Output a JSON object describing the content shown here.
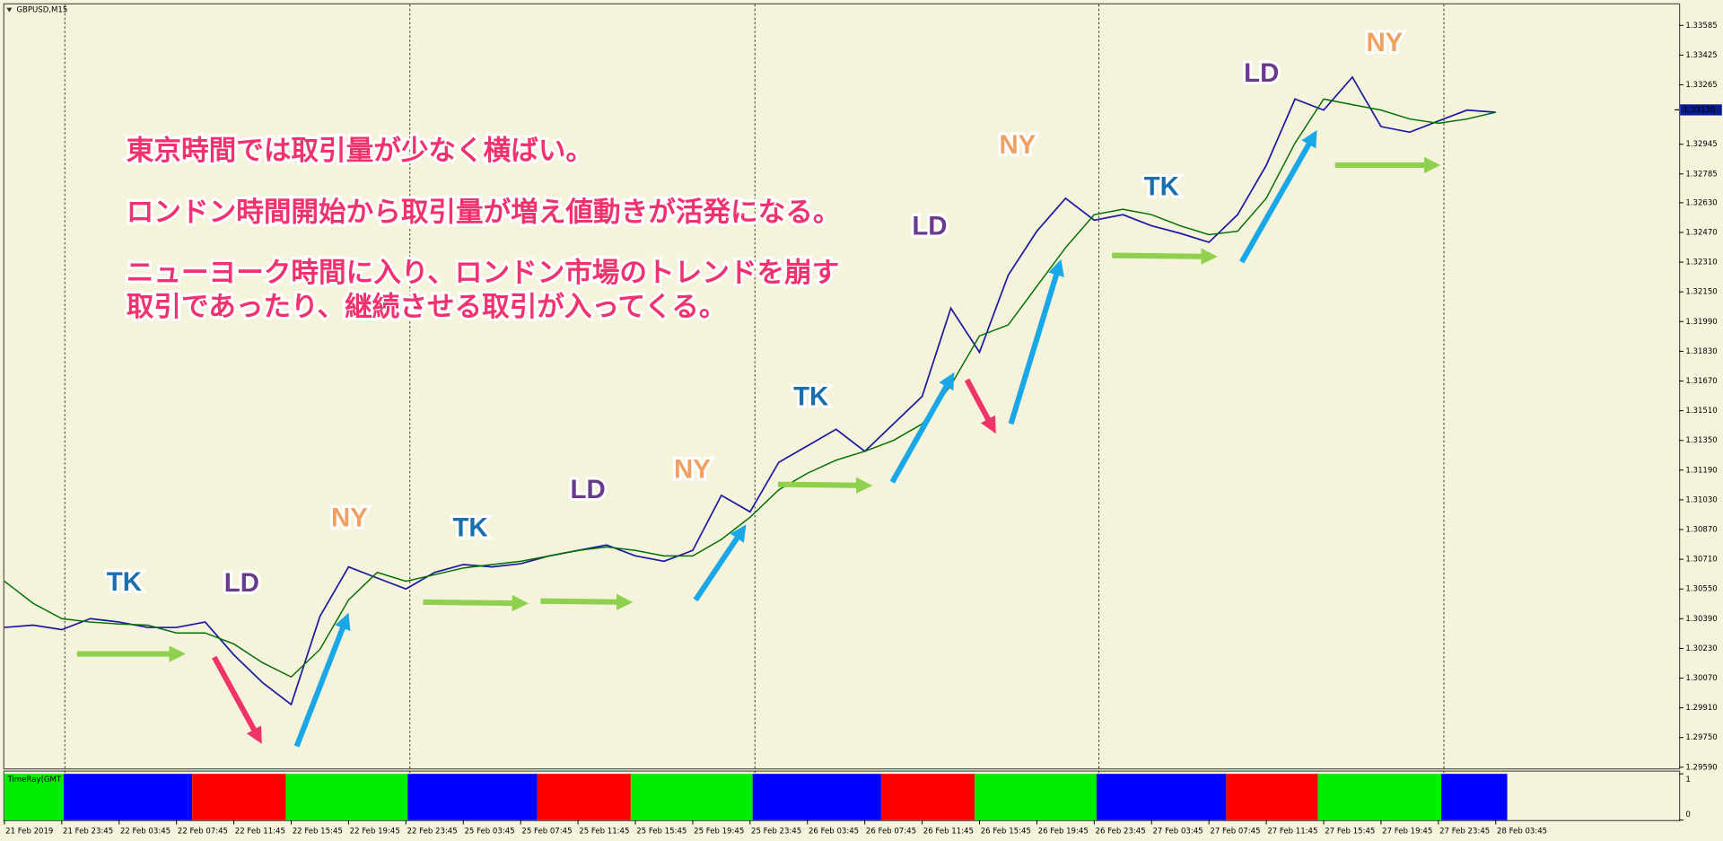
{
  "chart_data": [
    {
      "type": "line",
      "title": "GBPUSD,M15",
      "categories": [
        "21 Feb 2019",
        null,
        "21 Feb 23:45",
        null,
        "22 Feb 03:45",
        null,
        "22 Feb 07:45",
        null,
        "22 Feb 11:45",
        null,
        "22 Feb 15:45",
        null,
        "22 Feb 19:45",
        null,
        "22 Feb 23:45",
        null,
        "25 Feb 03:45",
        null,
        "25 Feb 07:45",
        null,
        "25 Feb 11:45",
        null,
        "25 Feb 15:45",
        null,
        "25 Feb 19:45",
        null,
        "25 Feb 23:45",
        null,
        "26 Feb 03:45",
        null,
        "26 Feb 07:45",
        null,
        "26 Feb 11:45",
        null,
        "26 Feb 15:45",
        null,
        "26 Feb 19:45",
        null,
        "26 Feb 23:45",
        null,
        "27 Feb 03:45",
        null,
        "27 Feb 07:45",
        null,
        "27 Feb 11:45",
        null,
        "27 Feb 15:45",
        null,
        "27 Feb 19:45",
        null,
        "27 Feb 23:45",
        null,
        "28 Feb 03:45"
      ],
      "series": [
        {
          "color": "#1a1aa0",
          "values": [
            1.30343,
            1.30355,
            1.30331,
            1.3039,
            1.30372,
            1.30343,
            1.30343,
            1.30372,
            1.30195,
            1.30046,
            1.29928,
            1.30402,
            1.30669,
            1.30609,
            1.3055,
            1.30639,
            1.30681,
            1.30669,
            1.30686,
            1.30728,
            1.30758,
            1.30787,
            1.30728,
            1.30699,
            1.30758,
            1.31054,
            1.30965,
            1.31232,
            1.31321,
            1.3141,
            1.31291,
            1.31439,
            1.31587,
            1.32062,
            1.31825,
            1.3224,
            1.32477,
            1.32654,
            1.32536,
            1.32566,
            1.32506,
            1.32465,
            1.32417,
            1.32566,
            1.32832,
            1.33188,
            1.33129,
            1.33306,
            1.3304,
            1.3301,
            1.3307,
            1.33129,
            1.33117
          ]
        },
        {
          "color": "#007000",
          "values": [
            1.30592,
            1.30473,
            1.3039,
            1.30372,
            1.30361,
            1.30355,
            1.30313,
            1.30313,
            1.30254,
            1.30153,
            1.30076,
            1.30224,
            1.30491,
            1.30639,
            1.30592,
            1.30627,
            1.30663,
            1.30681,
            1.30699,
            1.30728,
            1.30758,
            1.30776,
            1.30758,
            1.30728,
            1.30728,
            1.30817,
            1.30936,
            1.31084,
            1.31173,
            1.31244,
            1.31291,
            1.3135,
            1.31439,
            1.31647,
            1.31913,
            1.31972,
            1.3218,
            1.32388,
            1.32566,
            1.32595,
            1.32566,
            1.32506,
            1.32458,
            1.32477,
            1.32654,
            1.32951,
            1.33188,
            1.33158,
            1.33129,
            1.33081,
            1.33058,
            1.33081,
            1.33117
          ]
        }
      ],
      "ylim": [
        1.29584,
        1.33698
      ],
      "yticks": [
        1.33585,
        1.33425,
        1.33265,
        1.32945,
        1.32785,
        {
          "value": 1.3263,
          "label": "1.32630"
        },
        {
          "value": 1.3247,
          "label": "1.32470"
        },
        {
          "value": 1.3231,
          "label": "1.32310"
        },
        {
          "value": 1.3215,
          "label": "1.32150"
        },
        {
          "value": 1.3199,
          "label": "1.31990"
        },
        {
          "value": 1.3183,
          "label": "1.31830"
        },
        {
          "value": 1.3167,
          "label": "1.31670"
        },
        {
          "value": 1.3151,
          "label": "1.31510"
        },
        {
          "value": 1.3135,
          "label": "1.31350"
        },
        {
          "value": 1.3119,
          "label": "1.31190"
        },
        {
          "value": 1.3103,
          "label": "1.31030"
        },
        {
          "value": 1.3087,
          "label": "1.30870"
        },
        {
          "value": 1.3071,
          "label": "1.30710"
        },
        {
          "value": 1.3055,
          "label": "1.30550"
        },
        {
          "value": 1.3039,
          "label": "1.30390"
        },
        {
          "value": 1.3023,
          "label": "1.30230"
        },
        {
          "value": 1.3007,
          "label": "1.30070"
        },
        {
          "value": 1.2991,
          "label": "1.29910"
        },
        {
          "value": 1.2975,
          "label": "1.29750"
        },
        {
          "value": 1.2959,
          "label": "1.29590"
        }
      ],
      "current_price": {
        "value": 1.3313,
        "label": "1.33130"
      },
      "annotations": [
        "東京時間では取引量が少なく横ばい。",
        "ロンドン時間開始から取引量が増え値動きが活発になる。",
        "ニューヨーク時間に入り、ロンドン市場のトレンドを崩す",
        "取引であったり、継続させる取引が入ってくる。"
      ],
      "session_labels": [
        "TK",
        "LD",
        "NY",
        "TK",
        "LD",
        "NY",
        "TK",
        "LD",
        "NY",
        "TK",
        "LD",
        "NY"
      ]
    },
    {
      "type": "session-bars",
      "title": "TimeRay(GMT",
      "ylim": [
        0,
        1
      ],
      "yticks": [
        0,
        1
      ],
      "segments": [
        {
          "start": 0,
          "end": 2.07,
          "color": "#00ee00"
        },
        {
          "start": 2.07,
          "end": 6.55,
          "color": "#0000ff"
        },
        {
          "start": 6.55,
          "end": 9.81,
          "color": "#ff0000"
        },
        {
          "start": 9.81,
          "end": 14.06,
          "color": "#00ee00"
        },
        {
          "start": 14.06,
          "end": 18.58,
          "color": "#0000ff"
        },
        {
          "start": 18.58,
          "end": 21.84,
          "color": "#ff0000"
        },
        {
          "start": 21.84,
          "end": 26.09,
          "color": "#00ee00"
        },
        {
          "start": 26.09,
          "end": 30.57,
          "color": "#0000ff"
        },
        {
          "start": 30.57,
          "end": 33.83,
          "color": "#ff0000"
        },
        {
          "start": 33.83,
          "end": 38.08,
          "color": "#00ee00"
        },
        {
          "start": 38.08,
          "end": 42.6,
          "color": "#0000ff"
        },
        {
          "start": 42.6,
          "end": 45.8,
          "color": "#ff0000"
        },
        {
          "start": 45.8,
          "end": 50.1,
          "color": "#00ee00"
        },
        {
          "start": 50.1,
          "end": 52.4,
          "color": "#0000ff"
        }
      ]
    }
  ]
}
